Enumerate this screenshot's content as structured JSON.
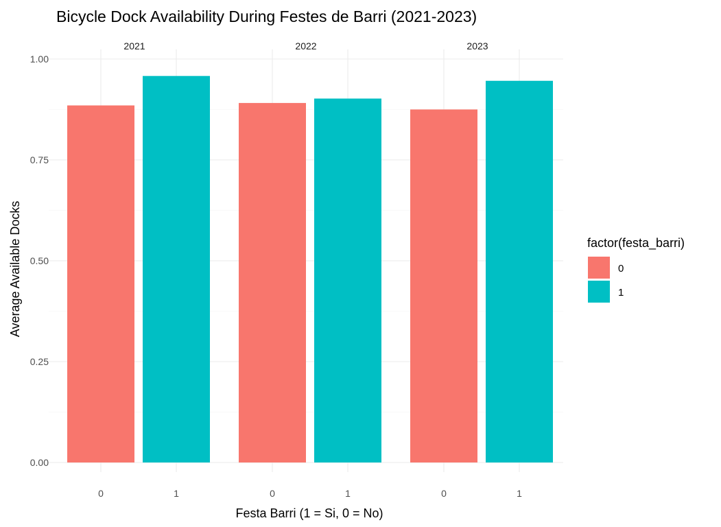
{
  "chart_data": {
    "type": "bar",
    "title": "Bicycle Dock Availability During Festes de Barri (2021-2023)",
    "xlabel": "Festa Barri (1 = Si, 0 = No)",
    "ylabel": "Average Available Docks",
    "ylim": [
      0,
      1
    ],
    "yticks": [
      "0.00",
      "0.25",
      "0.50",
      "0.75",
      "1.00"
    ],
    "ytick_values": [
      0,
      0.25,
      0.5,
      0.75,
      1.0
    ],
    "categories": [
      "0",
      "1"
    ],
    "facets": [
      {
        "label": "2021",
        "values": [
          0.885,
          0.958
        ]
      },
      {
        "label": "2022",
        "values": [
          0.891,
          0.902
        ]
      },
      {
        "label": "2023",
        "values": [
          0.875,
          0.946
        ]
      }
    ],
    "legend": {
      "title": "factor(festa_barri)",
      "entries": [
        {
          "label": "0",
          "color": "#F8766D"
        },
        {
          "label": "1",
          "color": "#00BFC4"
        }
      ],
      "position": "right"
    },
    "grid": true,
    "colors": {
      "0": "#F8766D",
      "1": "#00BFC4"
    }
  }
}
